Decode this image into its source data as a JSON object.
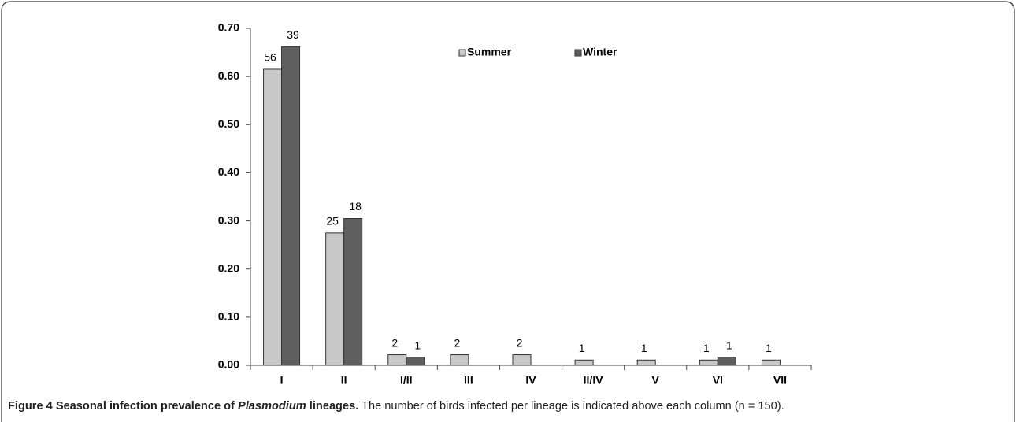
{
  "chart_data": {
    "type": "bar",
    "categories": [
      "I",
      "II",
      "I/II",
      "III",
      "IV",
      "II/IV",
      "V",
      "VI",
      "VII"
    ],
    "series": [
      {
        "name": "Summer",
        "color": "#c8c8c8",
        "values": [
          0.615,
          0.275,
          0.022,
          0.022,
          0.022,
          0.011,
          0.011,
          0.011,
          0.011
        ],
        "counts": [
          56,
          25,
          2,
          2,
          2,
          1,
          1,
          1,
          1
        ]
      },
      {
        "name": "Winter",
        "color": "#5f5f5f",
        "values": [
          0.662,
          0.305,
          0.017,
          null,
          null,
          null,
          null,
          0.017,
          null
        ],
        "counts": [
          39,
          18,
          1,
          null,
          null,
          null,
          null,
          1,
          null
        ]
      }
    ],
    "ylim": [
      0,
      0.7
    ],
    "yticks": [
      {
        "value": 0,
        "label": "0.00"
      },
      {
        "value": 0.1,
        "label": "0.10"
      },
      {
        "value": 0.2,
        "label": "0.20"
      },
      {
        "value": 0.3,
        "label": "0.30"
      },
      {
        "value": 0.4,
        "label": "0.40"
      },
      {
        "value": 0.5,
        "label": "0.50"
      },
      {
        "value": 0.6,
        "label": "0.60"
      },
      {
        "value": 0.7,
        "label": "0.70"
      }
    ],
    "grid": false,
    "legend": "top"
  },
  "caption": {
    "label": "Figure 4 Seasonal infection prevalence of ",
    "italic": "Plasmodium",
    "label_end": " lineages.",
    "text": " The number of birds infected per lineage is indicated above each column (n = 150)."
  }
}
